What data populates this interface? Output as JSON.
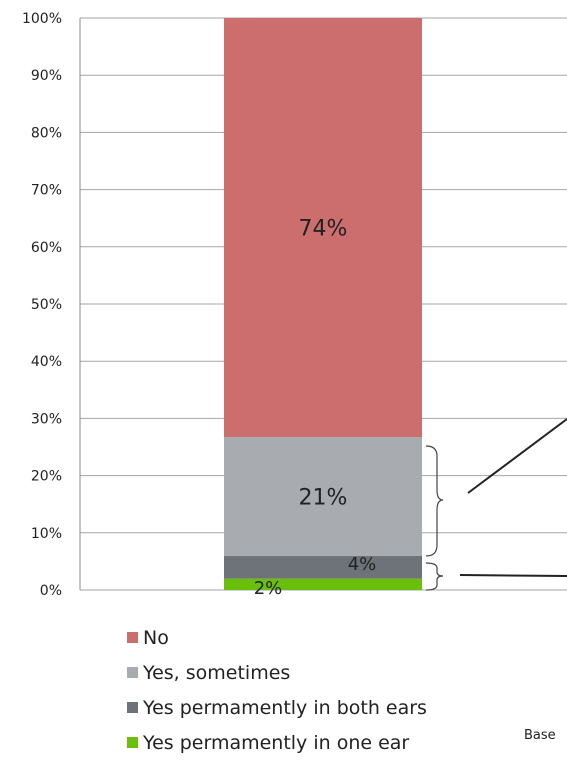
{
  "chart_data": {
    "type": "bar",
    "stacked": true,
    "categories": [
      ""
    ],
    "ylim": [
      0,
      100
    ],
    "yticks": [
      "0%",
      "10%",
      "20%",
      "30%",
      "40%",
      "50%",
      "60%",
      "70%",
      "80%",
      "90%",
      "100%"
    ],
    "grid": true,
    "legend_placement": "bottom",
    "series": [
      {
        "name": "Yes permamently in one ear",
        "values": [
          2
        ],
        "label": "2%",
        "color": "#6abf0b"
      },
      {
        "name": "Yes permamently in both ears",
        "values": [
          4
        ],
        "label": "4%",
        "color": "#6d7378"
      },
      {
        "name": "Yes, sometimes",
        "values": [
          21
        ],
        "label": "21%",
        "color": "#a8abaf"
      },
      {
        "name": "No",
        "values": [
          74
        ],
        "label": "74%",
        "color": "#cc6e6e"
      }
    ]
  },
  "legend": [
    {
      "label": "No",
      "color": "#cc6e6e"
    },
    {
      "label": "Yes, sometimes",
      "color": "#a8abaf"
    },
    {
      "label": "Yes permamently in both ears",
      "color": "#6d7378"
    },
    {
      "label": "Yes permamently in one ear",
      "color": "#6abf0b"
    }
  ],
  "footnote": "Base"
}
